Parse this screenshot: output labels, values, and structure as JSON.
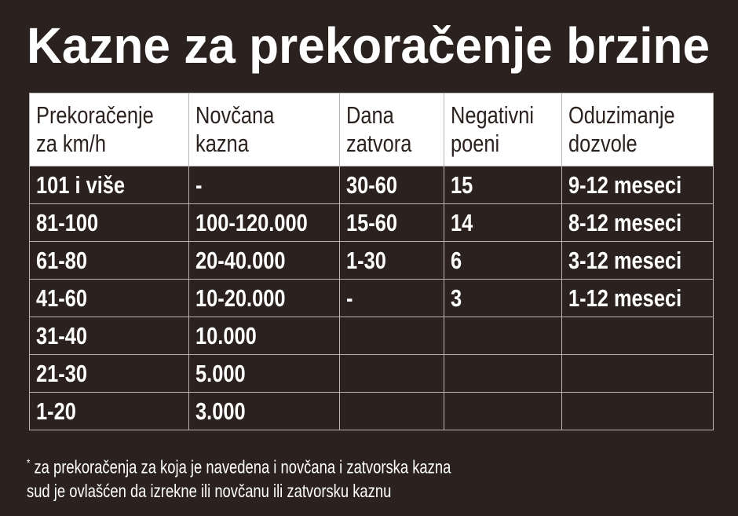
{
  "header": {
    "title": "Kazne za prekoračenje brzine"
  },
  "table": {
    "columns": [
      [
        "Prekoračenje",
        "za km/h"
      ],
      [
        "Novčana",
        "kazna"
      ],
      [
        "Dana",
        "zatvora"
      ],
      [
        "Negativni",
        "poeni"
      ],
      [
        "Oduzimanje",
        "dozvole"
      ]
    ],
    "rows": [
      [
        "101 i više",
        "-",
        "30-60",
        "15",
        "9-12 meseci"
      ],
      [
        "81-100",
        "100-120.000",
        "15-60",
        "14",
        "8-12 meseci"
      ],
      [
        "61-80",
        "20-40.000",
        "1-30",
        "6",
        "3-12 meseci"
      ],
      [
        "41-60",
        "10-20.000",
        "-",
        "3",
        "1-12 meseci"
      ],
      [
        "31-40",
        "10.000"
      ],
      [
        "21-30",
        "5.000"
      ],
      [
        "1-20",
        "3.000"
      ]
    ]
  },
  "footnote": {
    "marker": "*",
    "lines": [
      "za prekoračenja za koja je navedena i novčana i zatvorska kazna",
      "sud je ovlašćen da izrekne ili novčanu ili zatvorsku kaznu"
    ]
  }
}
